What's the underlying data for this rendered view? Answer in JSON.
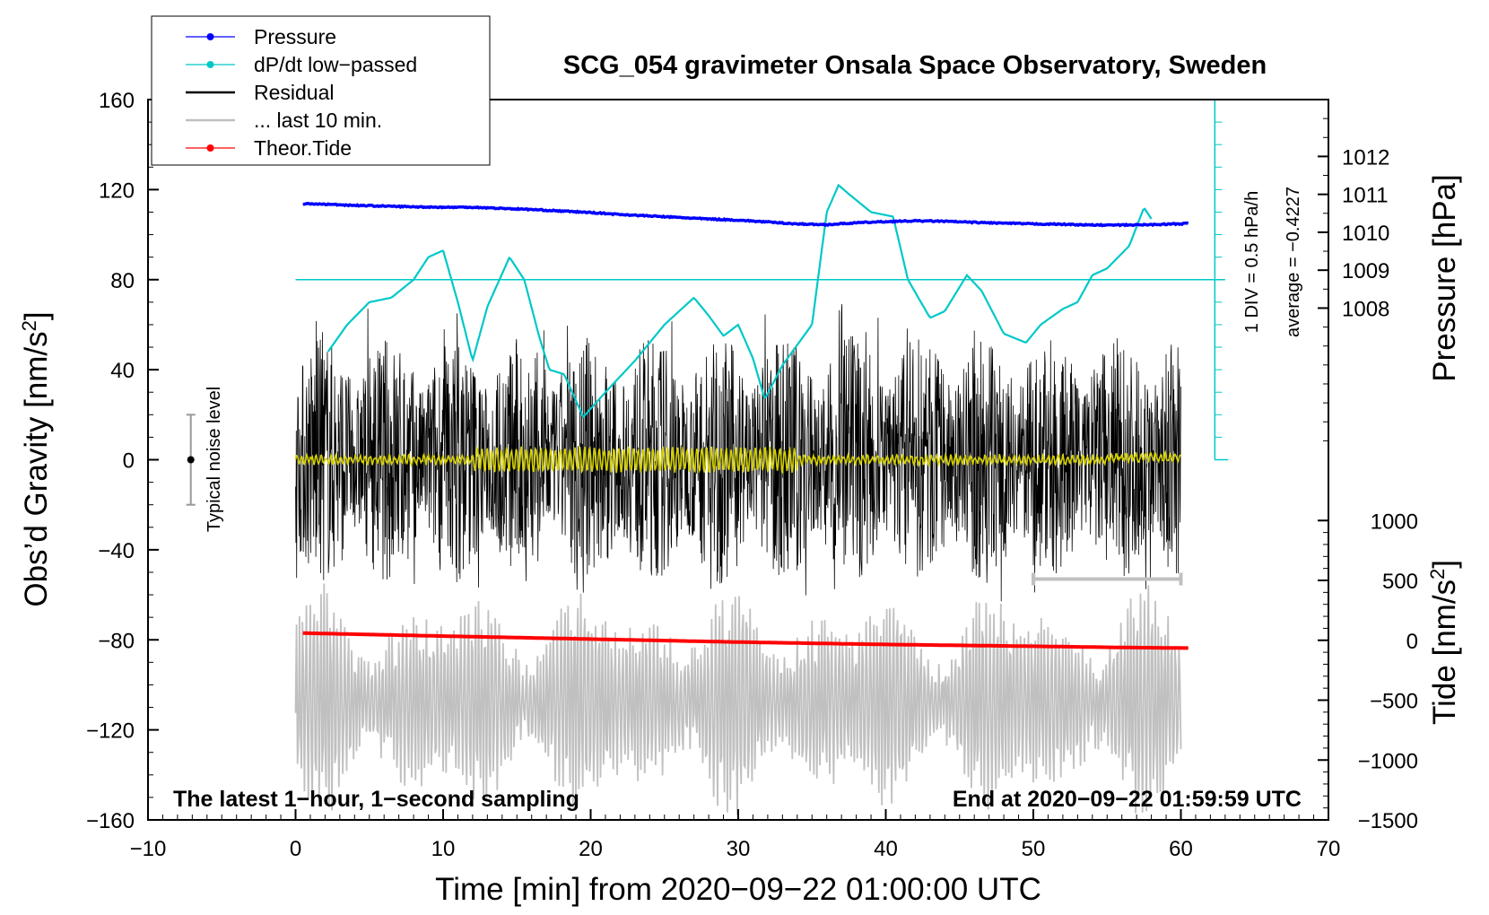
{
  "chart_data": {
    "type": "line",
    "title": "SCG_054 gravimeter Onsala Space Observatory, Sweden",
    "xlabel": "Time [min] from 2020−09−22 01:00:00 UTC",
    "ylabel_left": "Obs’d Gravity [nm/s",
    "ylabel_left_sup": "2",
    "ylabel_left_end": "]",
    "ylabel_right_top": "Pressure [hPa]",
    "ylabel_right_bottom": "Tide [nm/s",
    "ylabel_right_bottom_sup": "2",
    "ylabel_right_bottom_end": "]",
    "xlim": [
      -10,
      70
    ],
    "ylim": [
      -160,
      160
    ],
    "pressure_lim": [
      1004.0,
      1013.5
    ],
    "tide_lim": [
      -1500,
      1000
    ],
    "x_ticks": [
      "−10",
      "0",
      "10",
      "20",
      "30",
      "40",
      "50",
      "60",
      "70"
    ],
    "y_ticks": [
      "160",
      "120",
      "80",
      "40",
      "0",
      "−40",
      "−80",
      "−120",
      "−160"
    ],
    "pressure_ticks": [
      "1012",
      "1011",
      "1010",
      "1009",
      "1008"
    ],
    "tide_ticks": [
      "1000",
      "500",
      "0",
      "−500",
      "−1000",
      "−1500"
    ],
    "legend": [
      {
        "label": "Pressure",
        "color": "#0000ff",
        "marker": true
      },
      {
        "label": "dP/dt low−passed",
        "color": "#00c8c8",
        "marker": true
      },
      {
        "label": "Residual",
        "color": "#000000",
        "marker": false
      },
      {
        "label": "... last 10 min.",
        "color": "#c0c0c0",
        "marker": false
      },
      {
        "label": "Theor.Tide",
        "color": "#ff0000",
        "marker": true
      }
    ],
    "noise_label": "Typical noise level",
    "noise_range": [
      -20,
      20
    ],
    "dpdt_scale_label": "1 DIV = 0.5 hPa/h",
    "dpdt_average_label": "average = −0.4227",
    "dpdt_baseline_gravity": 80,
    "bottom_left_note": "The latest 1−hour, 1−second sampling",
    "bottom_right_note": "End at 2020−09−22 01:59:59 UTC",
    "last10_bracket_min": [
      50,
      60
    ],
    "series": [
      {
        "name": "Pressure",
        "unit": "hPa",
        "color": "#0000ff",
        "x": [
          0.5,
          2,
          4,
          6,
          8,
          10,
          12,
          14,
          16,
          18,
          20,
          22,
          24,
          26,
          28,
          30,
          32,
          34,
          36,
          38,
          40,
          42,
          44,
          46,
          48,
          50,
          52,
          54,
          56,
          58,
          60.5
        ],
        "values": [
          1010.75,
          1010.74,
          1010.71,
          1010.69,
          1010.67,
          1010.66,
          1010.66,
          1010.63,
          1010.6,
          1010.56,
          1010.52,
          1010.47,
          1010.43,
          1010.39,
          1010.35,
          1010.32,
          1010.27,
          1010.22,
          1010.2,
          1010.25,
          1010.28,
          1010.3,
          1010.29,
          1010.26,
          1010.24,
          1010.22,
          1010.21,
          1010.19,
          1010.19,
          1010.2,
          1010.23
        ]
      },
      {
        "name": "dP/dt low-passed",
        "unit": "gravity-axis plot units",
        "color": "#00c8c8",
        "x": [
          2.2,
          3.5,
          5,
          6.5,
          8,
          9,
          10,
          11,
          12,
          13,
          14.5,
          15.5,
          16.5,
          17.2,
          18.2,
          19.5,
          21,
          23,
          25,
          27,
          28,
          29,
          30,
          31,
          31.8,
          33,
          35,
          36,
          36.8,
          37.5,
          39,
          40.5,
          41.5,
          43,
          44,
          45.5,
          46.5,
          48,
          49.5,
          50.5,
          52,
          53,
          54,
          55,
          56.5,
          57.5,
          58
        ],
        "values": [
          48,
          60,
          70,
          72,
          80,
          90,
          93,
          70,
          44,
          68,
          90,
          80,
          55,
          40,
          38,
          19,
          30,
          44,
          60,
          72,
          64,
          55,
          60,
          45,
          27,
          42,
          60,
          110,
          122,
          118,
          110,
          108,
          80,
          63,
          66,
          82,
          75,
          56,
          52,
          60,
          67,
          70,
          82,
          85,
          95,
          112,
          107
        ]
      },
      {
        "name": "Theor.Tide",
        "unit": "nm/s2",
        "color": "#ff0000",
        "x": [
          0.5,
          10,
          20,
          30,
          40,
          50,
          56,
          60.5
        ],
        "values": [
          60,
          35,
          10,
          -15,
          -35,
          -50,
          -60,
          -65
        ]
      }
    ],
    "residual_envelope_nm_s2": {
      "typical_min": -55,
      "typical_max": 55,
      "extreme_min": -65,
      "extreme_max": 70
    },
    "last10_envelope_nm_s2": {
      "min": -160,
      "max": -55
    }
  }
}
